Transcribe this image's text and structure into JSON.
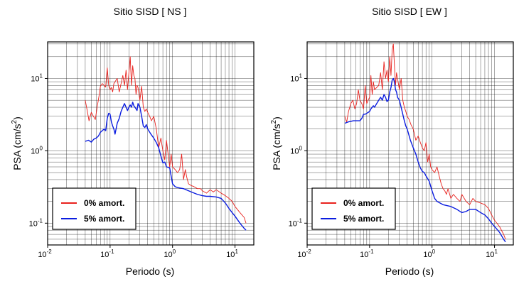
{
  "chart_data": [
    {
      "type": "line",
      "title": "Sitio SISD [ NS ]",
      "xlabel": "Periodo (s)",
      "ylabel_main": "PSA (cm/s",
      "ylabel_sup": "2",
      "ylabel_end": ")",
      "x_scale": "log",
      "y_scale": "log",
      "xlim": [
        0.01,
        20
      ],
      "ylim": [
        0.05,
        32
      ],
      "x_ticks": [
        {
          "base": "10",
          "exp": "-2"
        },
        {
          "base": "10",
          "exp": "-1"
        },
        {
          "base": "10",
          "exp": "0"
        },
        {
          "base": "10",
          "exp": "1"
        }
      ],
      "y_ticks": [
        {
          "base": "10",
          "exp": "-1"
        },
        {
          "base": "10",
          "exp": "0"
        },
        {
          "base": "10",
          "exp": "1"
        }
      ],
      "grid": true,
      "legend_position": "bottom-left",
      "series": [
        {
          "name": "0% amort.",
          "color": "#e8211d",
          "x": [
            0.04,
            0.043,
            0.046,
            0.05,
            0.054,
            0.058,
            0.062,
            0.066,
            0.07,
            0.075,
            0.08,
            0.085,
            0.09,
            0.095,
            0.1,
            0.105,
            0.11,
            0.115,
            0.12,
            0.13,
            0.14,
            0.15,
            0.16,
            0.17,
            0.18,
            0.19,
            0.2,
            0.21,
            0.22,
            0.23,
            0.24,
            0.25,
            0.26,
            0.27,
            0.28,
            0.3,
            0.32,
            0.34,
            0.36,
            0.38,
            0.4,
            0.43,
            0.46,
            0.5,
            0.55,
            0.6,
            0.65,
            0.7,
            0.75,
            0.8,
            0.85,
            0.9,
            0.95,
            1.0,
            1.1,
            1.2,
            1.3,
            1.4,
            1.5,
            1.6,
            1.7,
            1.8,
            2.0,
            2.2,
            2.5,
            2.8,
            3.0,
            3.5,
            4.0,
            4.5,
            5.0,
            6.0,
            7.0,
            8.0,
            9.0,
            10.0,
            12.0,
            14.0,
            15.0
          ],
          "y": [
            5.0,
            3.6,
            2.6,
            3.4,
            3.0,
            2.7,
            4.0,
            5.5,
            7.8,
            8.5,
            8.0,
            7.6,
            14.0,
            8.0,
            7.0,
            7.5,
            6.5,
            8.5,
            9.0,
            10.0,
            6.5,
            8.5,
            11.0,
            8.0,
            13.0,
            7.0,
            12.0,
            20.0,
            8.0,
            15.0,
            11.0,
            10.0,
            6.0,
            8.0,
            7.5,
            5.0,
            7.8,
            4.0,
            3.5,
            3.8,
            3.4,
            3.0,
            2.6,
            3.0,
            2.0,
            1.1,
            1.5,
            1.0,
            0.75,
            1.4,
            0.9,
            0.6,
            0.9,
            0.6,
            0.55,
            0.5,
            0.55,
            0.9,
            0.4,
            0.55,
            0.42,
            0.35,
            0.33,
            0.32,
            0.3,
            0.3,
            0.28,
            0.26,
            0.29,
            0.27,
            0.29,
            0.26,
            0.24,
            0.22,
            0.2,
            0.17,
            0.14,
            0.12,
            0.1
          ]
        },
        {
          "name": "5% amort.",
          "color": "#0b1de0",
          "x": [
            0.04,
            0.045,
            0.05,
            0.055,
            0.06,
            0.065,
            0.07,
            0.075,
            0.08,
            0.085,
            0.09,
            0.095,
            0.1,
            0.105,
            0.11,
            0.115,
            0.12,
            0.13,
            0.14,
            0.15,
            0.16,
            0.17,
            0.18,
            0.19,
            0.2,
            0.21,
            0.22,
            0.23,
            0.24,
            0.25,
            0.26,
            0.27,
            0.28,
            0.3,
            0.32,
            0.34,
            0.36,
            0.38,
            0.4,
            0.45,
            0.5,
            0.55,
            0.6,
            0.65,
            0.7,
            0.75,
            0.8,
            0.9,
            1.0,
            1.1,
            1.2,
            1.5,
            2.0,
            2.5,
            3.0,
            3.5,
            4.0,
            5.0,
            6.0,
            7.0,
            8.0,
            9.0,
            10.0,
            12.0,
            14.0,
            15.0
          ],
          "y": [
            1.35,
            1.4,
            1.32,
            1.45,
            1.5,
            1.6,
            1.8,
            1.9,
            2.0,
            1.9,
            2.8,
            3.3,
            3.2,
            2.5,
            2.2,
            2.0,
            1.7,
            2.4,
            2.8,
            3.5,
            4.0,
            4.5,
            4.0,
            3.6,
            4.0,
            4.3,
            4.0,
            4.7,
            4.2,
            4.0,
            3.8,
            3.6,
            4.5,
            4.0,
            3.0,
            2.2,
            2.1,
            2.3,
            2.0,
            1.7,
            1.5,
            1.3,
            1.1,
            0.85,
            0.68,
            0.7,
            0.6,
            0.58,
            0.35,
            0.32,
            0.31,
            0.3,
            0.27,
            0.25,
            0.24,
            0.235,
            0.235,
            0.23,
            0.22,
            0.19,
            0.16,
            0.14,
            0.125,
            0.1,
            0.085,
            0.08
          ]
        }
      ]
    },
    {
      "type": "line",
      "title": "Sitio SISD [ EW ]",
      "xlabel": "Periodo (s)",
      "ylabel_main": "PSA (cm/s",
      "ylabel_sup": "2",
      "ylabel_end": ")",
      "x_scale": "log",
      "y_scale": "log",
      "xlim": [
        0.01,
        20
      ],
      "ylim": [
        0.05,
        32
      ],
      "x_ticks": [
        {
          "base": "10",
          "exp": "-2"
        },
        {
          "base": "10",
          "exp": "-1"
        },
        {
          "base": "10",
          "exp": "0"
        },
        {
          "base": "10",
          "exp": "1"
        }
      ],
      "y_ticks": [
        {
          "base": "10",
          "exp": "-1"
        },
        {
          "base": "10",
          "exp": "0"
        },
        {
          "base": "10",
          "exp": "1"
        }
      ],
      "grid": true,
      "legend_position": "bottom-left",
      "series": [
        {
          "name": "0% amort.",
          "color": "#e8211d",
          "x": [
            0.04,
            0.043,
            0.046,
            0.05,
            0.054,
            0.058,
            0.062,
            0.066,
            0.07,
            0.075,
            0.08,
            0.085,
            0.09,
            0.095,
            0.1,
            0.105,
            0.11,
            0.115,
            0.12,
            0.13,
            0.14,
            0.15,
            0.16,
            0.17,
            0.18,
            0.19,
            0.2,
            0.21,
            0.22,
            0.23,
            0.24,
            0.25,
            0.26,
            0.27,
            0.28,
            0.3,
            0.32,
            0.34,
            0.36,
            0.38,
            0.4,
            0.43,
            0.46,
            0.5,
            0.55,
            0.6,
            0.65,
            0.7,
            0.75,
            0.8,
            0.85,
            0.9,
            0.95,
            1.0,
            1.1,
            1.2,
            1.3,
            1.4,
            1.5,
            1.6,
            1.7,
            1.8,
            2.0,
            2.2,
            2.5,
            2.8,
            3.0,
            3.5,
            4.0,
            4.5,
            5.0,
            6.0,
            7.0,
            8.0,
            9.0,
            10.0,
            12.0,
            14.0,
            15.0
          ],
          "y": [
            3.0,
            2.5,
            3.5,
            4.5,
            5.0,
            3.8,
            4.5,
            7.0,
            5.0,
            4.5,
            3.8,
            8.0,
            4.5,
            5.0,
            5.5,
            11.0,
            6.0,
            9.0,
            7.0,
            7.5,
            8.0,
            12.0,
            7.0,
            17.0,
            10.0,
            13.0,
            9.0,
            20.0,
            11.0,
            25.0,
            30.0,
            15.0,
            8.0,
            12.0,
            10.0,
            7.0,
            10.0,
            5.0,
            4.0,
            3.5,
            3.0,
            2.7,
            2.3,
            2.0,
            1.4,
            1.6,
            1.3,
            1.1,
            1.0,
            1.3,
            0.7,
            0.9,
            0.6,
            0.55,
            0.5,
            0.6,
            0.45,
            0.35,
            0.3,
            0.28,
            0.25,
            0.3,
            0.22,
            0.25,
            0.22,
            0.2,
            0.25,
            0.2,
            0.18,
            0.22,
            0.2,
            0.19,
            0.18,
            0.16,
            0.13,
            0.11,
            0.09,
            0.07,
            0.06
          ]
        },
        {
          "name": "5% amort.",
          "color": "#0b1de0",
          "x": [
            0.04,
            0.045,
            0.05,
            0.055,
            0.06,
            0.065,
            0.07,
            0.075,
            0.08,
            0.085,
            0.09,
            0.095,
            0.1,
            0.105,
            0.11,
            0.115,
            0.12,
            0.13,
            0.14,
            0.15,
            0.16,
            0.17,
            0.18,
            0.19,
            0.2,
            0.21,
            0.22,
            0.23,
            0.24,
            0.25,
            0.26,
            0.27,
            0.28,
            0.3,
            0.32,
            0.34,
            0.36,
            0.38,
            0.4,
            0.45,
            0.5,
            0.55,
            0.6,
            0.65,
            0.7,
            0.75,
            0.8,
            0.9,
            1.0,
            1.1,
            1.2,
            1.5,
            2.0,
            2.5,
            3.0,
            3.5,
            4.0,
            5.0,
            6.0,
            7.0,
            8.0,
            9.0,
            10.0,
            12.0,
            14.0,
            15.0
          ],
          "y": [
            2.4,
            2.5,
            2.55,
            2.6,
            2.6,
            2.6,
            2.6,
            2.8,
            3.2,
            3.2,
            3.3,
            3.4,
            3.5,
            3.8,
            4.0,
            4.2,
            4.0,
            4.5,
            5.0,
            5.5,
            5.0,
            6.0,
            5.5,
            4.8,
            5.0,
            6.5,
            7.5,
            9.5,
            10.0,
            9.0,
            7.0,
            6.5,
            5.5,
            5.0,
            4.0,
            3.2,
            2.6,
            2.2,
            2.0,
            1.4,
            1.1,
            0.9,
            0.7,
            0.58,
            0.52,
            0.5,
            0.45,
            0.38,
            0.28,
            0.22,
            0.2,
            0.18,
            0.17,
            0.155,
            0.14,
            0.145,
            0.155,
            0.155,
            0.14,
            0.13,
            0.115,
            0.1,
            0.09,
            0.075,
            0.06,
            0.055
          ]
        }
      ]
    }
  ]
}
